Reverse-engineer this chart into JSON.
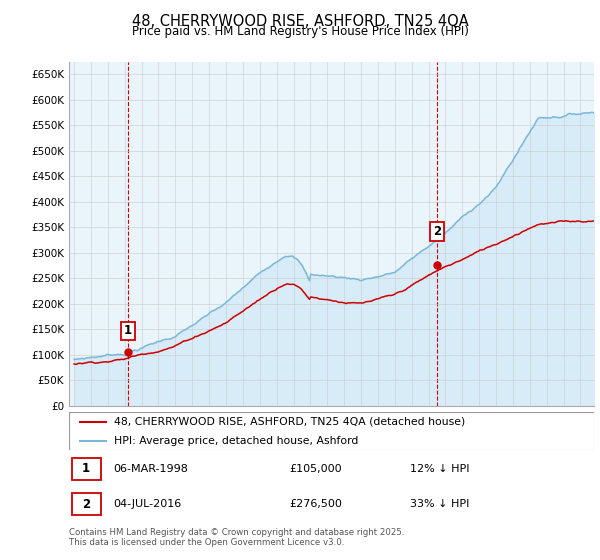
{
  "title_line1": "48, CHERRYWOOD RISE, ASHFORD, TN25 4QA",
  "title_line2": "Price paid vs. HM Land Registry's House Price Index (HPI)",
  "ylim": [
    0,
    675000
  ],
  "yticks": [
    0,
    50000,
    100000,
    150000,
    200000,
    250000,
    300000,
    350000,
    400000,
    450000,
    500000,
    550000,
    600000,
    650000
  ],
  "ytick_labels": [
    "£0",
    "£50K",
    "£100K",
    "£150K",
    "£200K",
    "£250K",
    "£300K",
    "£350K",
    "£400K",
    "£450K",
    "£500K",
    "£550K",
    "£600K",
    "£650K"
  ],
  "xlim_start": 1994.7,
  "xlim_end": 2025.8,
  "purchase1_year": 1998.17,
  "purchase1_price": 105000,
  "purchase2_year": 2016.5,
  "purchase2_price": 276500,
  "hpi_color": "#7ab8d9",
  "hpi_fill_color": "#d6eaf8",
  "price_color": "#cc0000",
  "vline_color": "#cc0000",
  "grid_color": "#cccccc",
  "plot_bg_color": "#eaf4fb",
  "background_color": "#ffffff",
  "legend_label_price": "48, CHERRYWOOD RISE, ASHFORD, TN25 4QA (detached house)",
  "legend_label_hpi": "HPI: Average price, detached house, Ashford",
  "footer": "Contains HM Land Registry data © Crown copyright and database right 2025.\nThis data is licensed under the Open Government Licence v3.0."
}
